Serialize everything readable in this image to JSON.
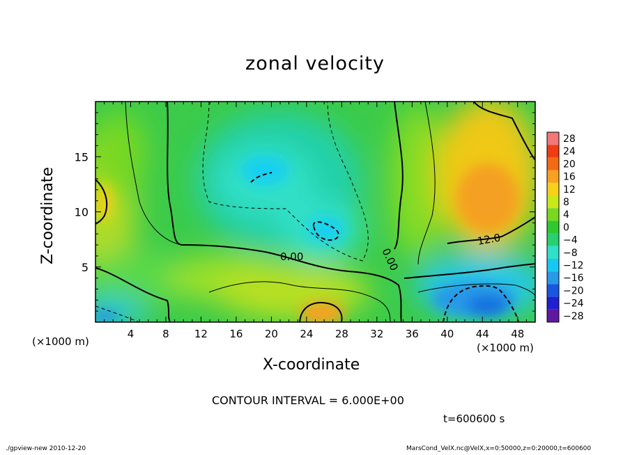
{
  "chart_data": {
    "type": "heatmap",
    "title": "zonal velocity",
    "xlabel": "X-coordinate",
    "ylabel": "Z-coordinate",
    "x_unit_left": "(×1000 m)",
    "x_unit_right": "(×1000 m)",
    "xlim": [
      0,
      50
    ],
    "ylim": [
      0,
      20
    ],
    "x_ticks": [
      "4",
      "8",
      "12",
      "16",
      "20",
      "24",
      "28",
      "32",
      "36",
      "40",
      "44",
      "48"
    ],
    "x_tick_values": [
      4,
      8,
      12,
      16,
      20,
      24,
      28,
      32,
      36,
      40,
      44,
      48
    ],
    "y_ticks": [
      "5",
      "10",
      "15"
    ],
    "y_tick_values": [
      5,
      10,
      15
    ],
    "colorbar": {
      "labels": [
        "28",
        "24",
        "20",
        "16",
        "12",
        "8",
        "4",
        "0",
        "−4",
        "−8",
        "−12",
        "−16",
        "−20",
        "−24",
        "−28"
      ],
      "levels": [
        28,
        24,
        20,
        16,
        12,
        8,
        4,
        0,
        -4,
        -8,
        -12,
        -16,
        -20,
        -24,
        -28
      ],
      "colors": [
        "#f07878",
        "#f03c14",
        "#f46a14",
        "#f8a020",
        "#f8d018",
        "#c8e818",
        "#7ad820",
        "#30c830",
        "#28d070",
        "#30e0c8",
        "#18c8f0",
        "#2898e8",
        "#1858e0",
        "#2020d0",
        "#6018a0"
      ]
    },
    "contour_labels": [
      "0.00",
      "0.00",
      "12.0"
    ],
    "grid": false
  },
  "contour_interval": "CONTOUR INTERVAL = 6.000E+00",
  "time_label": "t=600600 s",
  "footer_left": "./gpview-new  2010-12-20",
  "footer_right": "MarsCond_VelX.nc@VelX,x=0:50000,z=0:20000,t=600600"
}
